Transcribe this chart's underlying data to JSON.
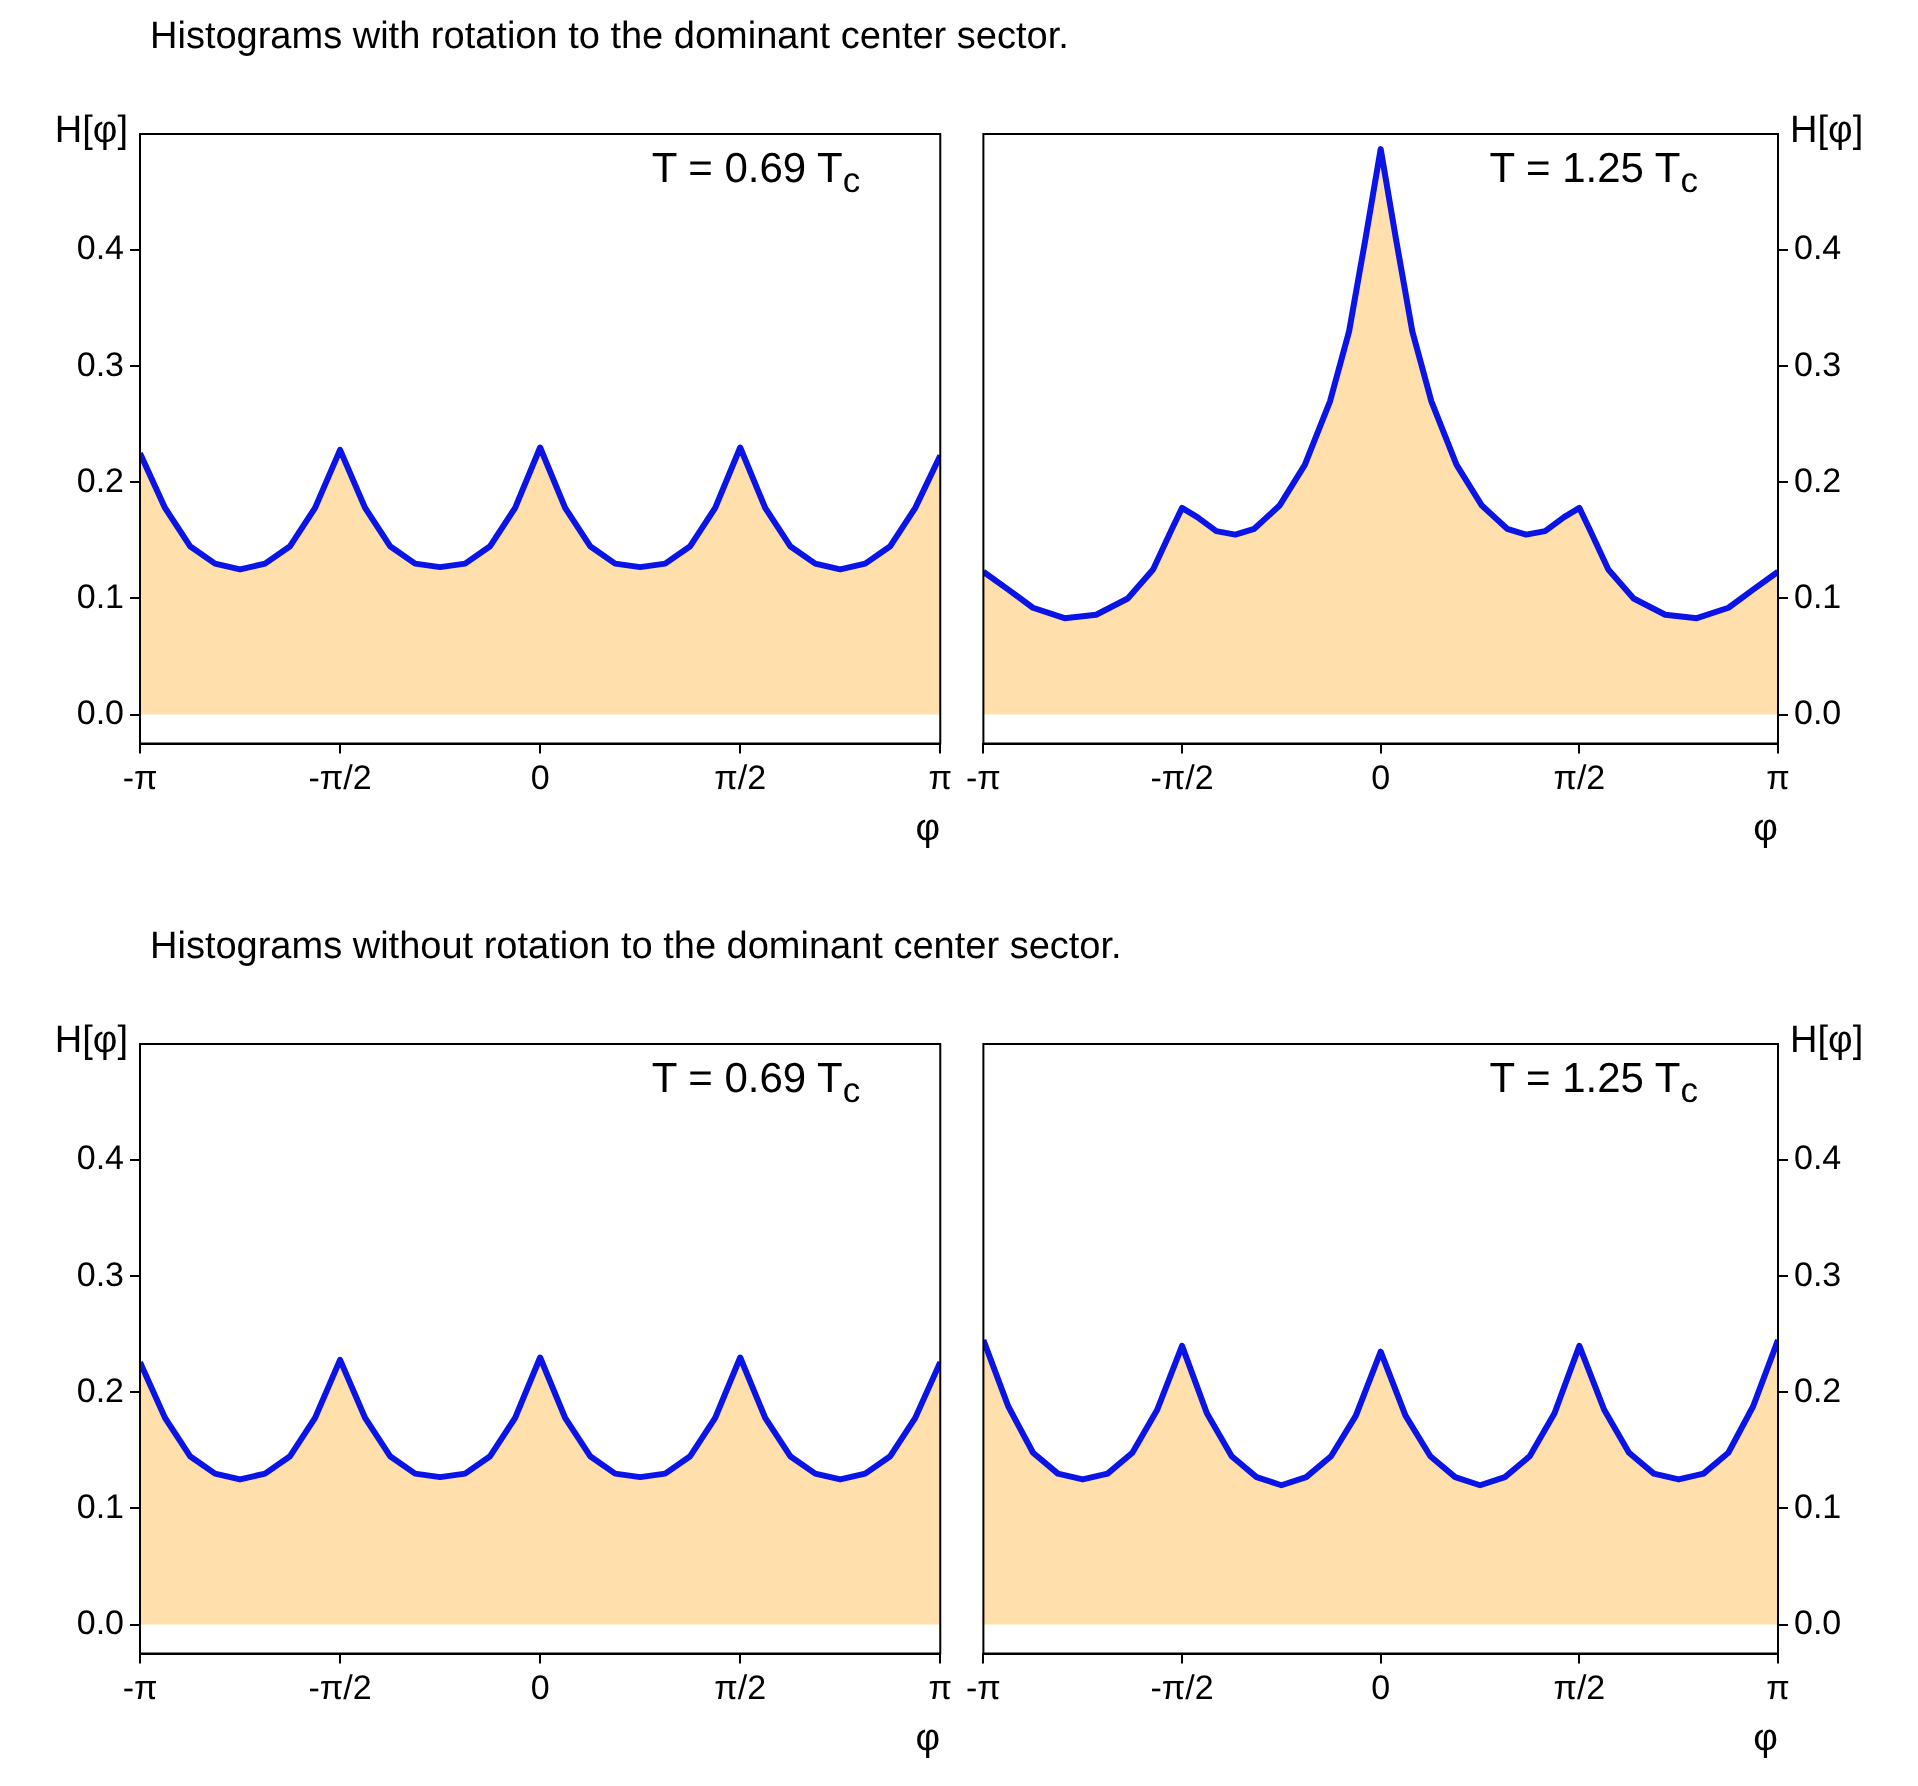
{
  "chart_data": [
    {
      "type": "area",
      "title": "Histograms with rotation to the dominant center sector.",
      "xlabel": "φ",
      "ylabel": "H[φ]",
      "annotations": [
        "T = 0.69 T$_{c}$"
      ],
      "xlim": [
        -3.1416,
        3.1416
      ],
      "xticks": [
        {
          "value": -3.1416,
          "label": "-π"
        },
        {
          "value": -1.5708,
          "label": "-π/2"
        },
        {
          "value": 0,
          "label": "0"
        },
        {
          "value": 1.5708,
          "label": "π/2"
        },
        {
          "value": 3.1416,
          "label": "π"
        }
      ],
      "ylim": [
        -0.025,
        0.5
      ],
      "yticks": [
        {
          "value": 0,
          "label": "0.0"
        },
        0.1,
        0.2,
        0.3,
        0.4
      ],
      "grid": false,
      "legend": false,
      "marker": "none",
      "x": [
        -3.1416,
        -2.9452,
        -2.7489,
        -2.5525,
        -2.3562,
        -2.1598,
        -1.9635,
        -1.7671,
        -1.5708,
        -1.3744,
        -1.1781,
        -0.9817,
        -0.7854,
        -0.589,
        -0.3927,
        -0.1963,
        0,
        0.1963,
        0.3927,
        0.589,
        0.7854,
        0.9817,
        1.1781,
        1.3744,
        1.5708,
        1.7671,
        1.9635,
        2.1598,
        2.3562,
        2.5525,
        2.7489,
        2.9452,
        3.1416
      ],
      "series": [
        {
          "color": "#ffb030",
          "values": [
            0.225,
            0.178,
            0.145,
            0.13,
            0.125,
            0.13,
            0.145,
            0.178,
            0.228,
            0.178,
            0.145,
            0.13,
            0.127,
            0.13,
            0.145,
            0.178,
            0.23,
            0.178,
            0.145,
            0.13,
            0.127,
            0.13,
            0.145,
            0.178,
            0.23,
            0.178,
            0.145,
            0.13,
            0.125,
            0.13,
            0.145,
            0.178,
            0.223
          ]
        },
        {
          "type": "line",
          "color": "#0a14e6",
          "values": [
            0.225,
            0.178,
            0.145,
            0.13,
            0.125,
            0.13,
            0.145,
            0.178,
            0.228,
            0.178,
            0.145,
            0.13,
            0.127,
            0.13,
            0.145,
            0.178,
            0.23,
            0.178,
            0.145,
            0.13,
            0.127,
            0.13,
            0.145,
            0.178,
            0.23,
            0.178,
            0.145,
            0.13,
            0.125,
            0.13,
            0.145,
            0.178,
            0.223
          ]
        }
      ]
    },
    {
      "type": "area",
      "xlabel": "φ",
      "y2label": "H[φ]",
      "annotations": [
        "T = 1.25 T$_{c}$"
      ],
      "xlim": [
        -3.1416,
        3.1416
      ],
      "xticks": [
        {
          "value": -3.1416,
          "label": "-π"
        },
        {
          "value": -1.5708,
          "label": "-π/2"
        },
        {
          "value": 0,
          "label": "0"
        },
        {
          "value": 1.5708,
          "label": "π/2"
        },
        {
          "value": 3.1416,
          "label": "π"
        }
      ],
      "y2lim": [
        -0.025,
        0.5
      ],
      "y2ticks": [
        {
          "value": 0,
          "label": "0.0"
        },
        0.1,
        0.2,
        0.3,
        0.4
      ],
      "grid": false,
      "legend": false,
      "marker": "none",
      "x": [
        -3.1416,
        -2.95,
        -2.75,
        -2.5,
        -2.25,
        -2.0,
        -1.8,
        -1.65,
        -1.5708,
        -1.45,
        -1.3,
        -1.15,
        -1.0,
        -0.8,
        -0.6,
        -0.4,
        -0.25,
        -0.12,
        0,
        0.12,
        0.25,
        0.4,
        0.6,
        0.8,
        1.0,
        1.15,
        1.3,
        1.45,
        1.5708,
        1.65,
        1.8,
        2.0,
        2.25,
        2.5,
        2.75,
        2.95,
        3.1416
      ],
      "series": [
        {
          "axis": "y2",
          "color": "#ffb030",
          "values": [
            0.123,
            0.108,
            0.092,
            0.083,
            0.086,
            0.1,
            0.125,
            0.16,
            0.178,
            0.17,
            0.158,
            0.155,
            0.16,
            0.18,
            0.215,
            0.27,
            0.33,
            0.41,
            0.487,
            0.41,
            0.33,
            0.27,
            0.215,
            0.18,
            0.16,
            0.155,
            0.158,
            0.17,
            0.178,
            0.16,
            0.125,
            0.1,
            0.086,
            0.083,
            0.092,
            0.108,
            0.123
          ]
        },
        {
          "type": "line",
          "axis": "y2",
          "color": "#0a14e6",
          "values": [
            0.123,
            0.108,
            0.092,
            0.083,
            0.086,
            0.1,
            0.125,
            0.16,
            0.178,
            0.17,
            0.158,
            0.155,
            0.16,
            0.18,
            0.215,
            0.27,
            0.33,
            0.41,
            0.487,
            0.41,
            0.33,
            0.27,
            0.215,
            0.18,
            0.16,
            0.155,
            0.158,
            0.17,
            0.178,
            0.16,
            0.125,
            0.1,
            0.086,
            0.083,
            0.092,
            0.108,
            0.123
          ]
        }
      ]
    },
    {
      "type": "area",
      "title": "Histograms without rotation to the dominant center sector.",
      "xlabel": "φ",
      "ylabel": "H[φ]",
      "annotations": [
        "T = 0.69 T$_{c}$"
      ],
      "xlim": [
        -3.1416,
        3.1416
      ],
      "xticks": [
        {
          "value": -3.1416,
          "label": "-π"
        },
        {
          "value": -1.5708,
          "label": "-π/2"
        },
        {
          "value": 0,
          "label": "0"
        },
        {
          "value": 1.5708,
          "label": "π/2"
        },
        {
          "value": 3.1416,
          "label": "π"
        }
      ],
      "ylim": [
        -0.025,
        0.5
      ],
      "yticks": [
        {
          "value": 0,
          "label": "0.0"
        },
        0.1,
        0.2,
        0.3,
        0.4
      ],
      "grid": false,
      "legend": false,
      "marker": "none",
      "x": [
        -3.1416,
        -2.9452,
        -2.7489,
        -2.5525,
        -2.3562,
        -2.1598,
        -1.9635,
        -1.7671,
        -1.5708,
        -1.3744,
        -1.1781,
        -0.9817,
        -0.7854,
        -0.589,
        -0.3927,
        -0.1963,
        0,
        0.1963,
        0.3927,
        0.589,
        0.7854,
        0.9817,
        1.1781,
        1.3744,
        1.5708,
        1.7671,
        1.9635,
        2.1598,
        2.3562,
        2.5525,
        2.7489,
        2.9452,
        3.1416
      ],
      "series": [
        {
          "color": "#ffb030",
          "values": [
            0.226,
            0.178,
            0.145,
            0.13,
            0.125,
            0.13,
            0.145,
            0.178,
            0.228,
            0.178,
            0.145,
            0.13,
            0.127,
            0.13,
            0.145,
            0.178,
            0.23,
            0.178,
            0.145,
            0.13,
            0.127,
            0.13,
            0.145,
            0.178,
            0.23,
            0.178,
            0.145,
            0.13,
            0.125,
            0.13,
            0.145,
            0.178,
            0.226
          ]
        },
        {
          "type": "line",
          "color": "#0a14e6",
          "values": [
            0.226,
            0.178,
            0.145,
            0.13,
            0.125,
            0.13,
            0.145,
            0.178,
            0.228,
            0.178,
            0.145,
            0.13,
            0.127,
            0.13,
            0.145,
            0.178,
            0.23,
            0.178,
            0.145,
            0.13,
            0.127,
            0.13,
            0.145,
            0.178,
            0.23,
            0.178,
            0.145,
            0.13,
            0.125,
            0.13,
            0.145,
            0.178,
            0.226
          ]
        }
      ]
    },
    {
      "type": "area",
      "xlabel": "φ",
      "y2label": "H[φ]",
      "annotations": [
        "T = 1.25 T$_{c}$"
      ],
      "xlim": [
        -3.1416,
        3.1416
      ],
      "xticks": [
        {
          "value": -3.1416,
          "label": "-π"
        },
        {
          "value": -1.5708,
          "label": "-π/2"
        },
        {
          "value": 0,
          "label": "0"
        },
        {
          "value": 1.5708,
          "label": "π/2"
        },
        {
          "value": 3.1416,
          "label": "π"
        }
      ],
      "y2lim": [
        -0.025,
        0.5
      ],
      "y2ticks": [
        {
          "value": 0,
          "label": "0.0"
        },
        0.1,
        0.2,
        0.3,
        0.4
      ],
      "grid": false,
      "legend": false,
      "marker": "none",
      "x": [
        -3.1416,
        -2.9452,
        -2.7489,
        -2.5525,
        -2.3562,
        -2.1598,
        -1.9635,
        -1.7671,
        -1.5708,
        -1.3744,
        -1.1781,
        -0.9817,
        -0.7854,
        -0.589,
        -0.3927,
        -0.1963,
        0,
        0.1963,
        0.3927,
        0.589,
        0.7854,
        0.9817,
        1.1781,
        1.3744,
        1.5708,
        1.7671,
        1.9635,
        2.1598,
        2.3562,
        2.5525,
        2.7489,
        2.9452,
        3.1416
      ],
      "series": [
        {
          "axis": "y2",
          "color": "#ffb030",
          "values": [
            0.245,
            0.188,
            0.148,
            0.13,
            0.125,
            0.13,
            0.148,
            0.185,
            0.24,
            0.182,
            0.145,
            0.127,
            0.12,
            0.127,
            0.145,
            0.18,
            0.235,
            0.18,
            0.145,
            0.127,
            0.12,
            0.127,
            0.145,
            0.182,
            0.24,
            0.185,
            0.148,
            0.13,
            0.125,
            0.13,
            0.148,
            0.188,
            0.245
          ]
        },
        {
          "type": "line",
          "axis": "y2",
          "color": "#0a14e6",
          "values": [
            0.245,
            0.188,
            0.148,
            0.13,
            0.125,
            0.13,
            0.148,
            0.185,
            0.24,
            0.182,
            0.145,
            0.127,
            0.12,
            0.127,
            0.145,
            0.18,
            0.235,
            0.18,
            0.145,
            0.127,
            0.12,
            0.127,
            0.145,
            0.182,
            0.24,
            0.185,
            0.148,
            0.13,
            0.125,
            0.13,
            0.148,
            0.188,
            0.245
          ]
        }
      ]
    }
  ]
}
